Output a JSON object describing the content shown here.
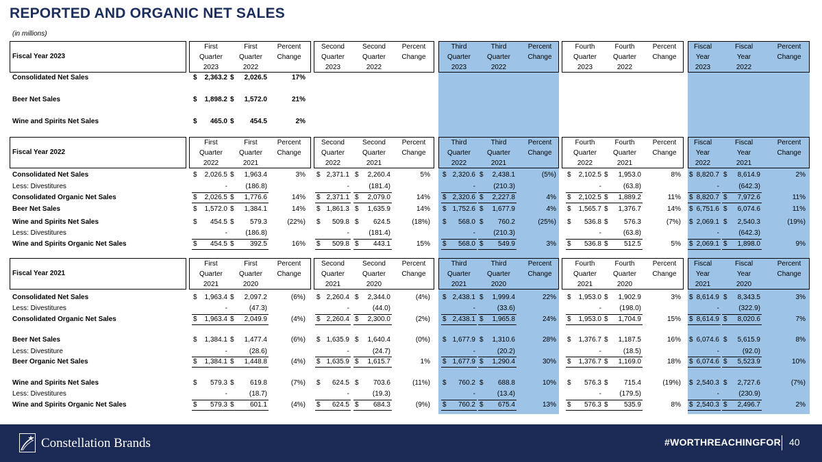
{
  "title": "REPORTED AND ORGANIC NET SALES",
  "units_note": "(in millions)",
  "sections": [
    {
      "label": "Fiscal Year 2023",
      "col_headers": [
        [
          "First",
          "Quarter",
          "2023"
        ],
        [
          "First",
          "Quarter",
          "2022"
        ],
        [
          "Percent",
          "Change",
          ""
        ],
        [
          "Second",
          "Quarter",
          "2023"
        ],
        [
          "Second",
          "Quarter",
          "2022"
        ],
        [
          "Percent",
          "Change",
          ""
        ],
        [
          "Third",
          "Quarter",
          "2023"
        ],
        [
          "Third",
          "Quarter",
          "2022"
        ],
        [
          "Percent",
          "Change",
          ""
        ],
        [
          "Fourth",
          "Quarter",
          "2023"
        ],
        [
          "Fourth",
          "Quarter",
          "2022"
        ],
        [
          "Percent",
          "Change",
          ""
        ],
        [
          "Fiscal",
          "Year",
          "2023"
        ],
        [
          "Fiscal",
          "Year",
          "2022"
        ],
        [
          "Percent",
          "Change",
          ""
        ]
      ],
      "rows": [
        {
          "label": "Consolidated Net Sales",
          "bold": true,
          "total": false,
          "dollar": true,
          "values": [
            "2,363.2",
            "2,026.5",
            "17%",
            "",
            "",
            "",
            "",
            "",
            "",
            "",
            "",
            "",
            "",
            "",
            ""
          ]
        },
        {
          "label": "Beer Net Sales",
          "bold": true,
          "total": false,
          "dollar": true,
          "values": [
            "1,898.2",
            "1,572.0",
            "21%",
            "",
            "",
            "",
            "",
            "",
            "",
            "",
            "",
            "",
            "",
            "",
            ""
          ]
        },
        {
          "label": "Wine and Spirits Net Sales",
          "bold": true,
          "total": false,
          "dollar": true,
          "values": [
            "465.0",
            "454.5",
            "2%",
            "",
            "",
            "",
            "",
            "",
            "",
            "",
            "",
            "",
            "",
            "",
            ""
          ]
        }
      ]
    },
    {
      "label": "Fiscal Year 2022",
      "col_headers": [
        [
          "First",
          "Quarter",
          "2022"
        ],
        [
          "First",
          "Quarter",
          "2021"
        ],
        [
          "Percent",
          "Change",
          ""
        ],
        [
          "Second",
          "Quarter",
          "2022"
        ],
        [
          "Second",
          "Quarter",
          "2021"
        ],
        [
          "Percent",
          "Change",
          ""
        ],
        [
          "Third",
          "Quarter",
          "2022"
        ],
        [
          "Third",
          "Quarter",
          "2021"
        ],
        [
          "Percent",
          "Change",
          ""
        ],
        [
          "Fourth",
          "Quarter",
          "2022"
        ],
        [
          "Fourth",
          "Quarter",
          "2021"
        ],
        [
          "Percent",
          "Change",
          ""
        ],
        [
          "Fiscal",
          "Year",
          "2022"
        ],
        [
          "Fiscal",
          "Year",
          "2021"
        ],
        [
          "Percent",
          "Change",
          ""
        ]
      ],
      "rows": [
        {
          "label": "Consolidated Net Sales",
          "bold": true,
          "total": false,
          "dollar": true,
          "values": [
            "2,026.5",
            "1,963.4",
            "3%",
            "2,371.1",
            "2,260.4",
            "5%",
            "2,320.6",
            "2,438.1",
            "(5%)",
            "2,102.5",
            "1,953.0",
            "8%",
            "8,820.7",
            "8,614.9",
            "2%"
          ]
        },
        {
          "label": "Less: Divestitures",
          "bold": false,
          "total": false,
          "dollar": false,
          "values": [
            "-",
            "(186.8)",
            "",
            "-",
            "(181.4)",
            "",
            "-",
            "(210.3)",
            "",
            "-",
            "(63.8)",
            "",
            "-",
            "(642.3)",
            ""
          ]
        },
        {
          "label": "Consolidated Organic Net Sales",
          "bold": true,
          "total": true,
          "dollar": true,
          "values": [
            "2,026.5",
            "1,776.6",
            "14%",
            "2,371.1",
            "2,079.0",
            "14%",
            "2,320.6",
            "2,227.8",
            "4%",
            "2,102.5",
            "1,889.2",
            "11%",
            "8,820.7",
            "7,972.6",
            "11%"
          ]
        },
        {
          "label": "Beer Net Sales",
          "bold": true,
          "total": false,
          "dollar": true,
          "values": [
            "1,572.0",
            "1,384.1",
            "14%",
            "1,861.3",
            "1,635.9",
            "14%",
            "1,752.6",
            "1,677.9",
            "4%",
            "1,565.7",
            "1,376.7",
            "14%",
            "6,751.6",
            "6,074.6",
            "11%"
          ]
        },
        {
          "label": "Wine and Spirits Net Sales",
          "bold": true,
          "total": false,
          "dollar": true,
          "values": [
            "454.5",
            "579.3",
            "(22%)",
            "509.8",
            "624.5",
            "(18%)",
            "568.0",
            "760.2",
            "(25%)",
            "536.8",
            "576.3",
            "(7%)",
            "2,069.1",
            "2,540.3",
            "(19%)"
          ]
        },
        {
          "label": "Less: Divestitures",
          "bold": false,
          "total": false,
          "dollar": false,
          "values": [
            "-",
            "(186.8)",
            "",
            "-",
            "(181.4)",
            "",
            "-",
            "(210.3)",
            "",
            "-",
            "(63.8)",
            "",
            "-",
            "(642.3)",
            ""
          ]
        },
        {
          "label": "Wine and Spirits Organic Net Sales",
          "bold": true,
          "total": true,
          "dollar": true,
          "values": [
            "454.5",
            "392.5",
            "16%",
            "509.8",
            "443.1",
            "15%",
            "568.0",
            "549.9",
            "3%",
            "536.8",
            "512.5",
            "5%",
            "2,069.1",
            "1,898.0",
            "9%"
          ]
        }
      ]
    },
    {
      "label": "Fiscal Year 2021",
      "col_headers": [
        [
          "First",
          "Quarter",
          "2021"
        ],
        [
          "First",
          "Quarter",
          "2020"
        ],
        [
          "Percent",
          "Change",
          ""
        ],
        [
          "Second",
          "Quarter",
          "2021"
        ],
        [
          "Second",
          "Quarter",
          "2020"
        ],
        [
          "Percent",
          "Change",
          ""
        ],
        [
          "Third",
          "Quarter",
          "2021"
        ],
        [
          "Third",
          "Quarter",
          "2020"
        ],
        [
          "Percent",
          "Change",
          ""
        ],
        [
          "Fourth",
          "Quarter",
          "2021"
        ],
        [
          "Fourth",
          "Quarter",
          "2020"
        ],
        [
          "Percent",
          "Change",
          ""
        ],
        [
          "Fiscal",
          "Year",
          "2021"
        ],
        [
          "Fiscal",
          "Year",
          "2020"
        ],
        [
          "Percent",
          "Change",
          ""
        ]
      ],
      "rows": [
        {
          "label": "Consolidated Net Sales",
          "bold": true,
          "total": false,
          "dollar": true,
          "values": [
            "1,963.4",
            "2,097.2",
            "(6%)",
            "2,260.4",
            "2,344.0",
            "(4%)",
            "2,438.1",
            "1,999.4",
            "22%",
            "1,953.0",
            "1,902.9",
            "3%",
            "8,614.9",
            "8,343.5",
            "3%"
          ]
        },
        {
          "label": "Less: Divestitures",
          "bold": false,
          "total": false,
          "dollar": false,
          "values": [
            "-",
            "(47.3)",
            "",
            "-",
            "(44.0)",
            "",
            "-",
            "(33.6)",
            "",
            "-",
            "(198.0)",
            "",
            "-",
            "(322.9)",
            ""
          ]
        },
        {
          "label": "Consolidated Organic Net Sales",
          "bold": true,
          "total": true,
          "dollar": true,
          "values": [
            "1,963.4",
            "2,049.9",
            "(4%)",
            "2,260.4",
            "2,300.0",
            "(2%)",
            "2,438.1",
            "1,965.8",
            "24%",
            "1,953.0",
            "1,704.9",
            "15%",
            "8,614.9",
            "8,020.6",
            "7%"
          ]
        },
        {
          "label": "Beer Net Sales",
          "bold": true,
          "total": false,
          "dollar": true,
          "values": [
            "1,384.1",
            "1,477.4",
            "(6%)",
            "1,635.9",
            "1,640.4",
            "(0%)",
            "1,677.9",
            "1,310.6",
            "28%",
            "1,376.7",
            "1,187.5",
            "16%",
            "6,074.6",
            "5,615.9",
            "8%"
          ]
        },
        {
          "label": "Less: Divestiture",
          "bold": false,
          "total": false,
          "dollar": false,
          "values": [
            "-",
            "(28.6)",
            "",
            "-",
            "(24.7)",
            "",
            "-",
            "(20.2)",
            "",
            "-",
            "(18.5)",
            "",
            "-",
            "(92.0)",
            ""
          ]
        },
        {
          "label": "Beer Organic Net Sales",
          "bold": true,
          "total": true,
          "dollar": true,
          "values": [
            "1,384.1",
            "1,448.8",
            "(4%)",
            "1,635.9",
            "1,615.7",
            "1%",
            "1,677.9",
            "1,290.4",
            "30%",
            "1,376.7",
            "1,169.0",
            "18%",
            "6,074.6",
            "5,523.9",
            "10%"
          ]
        },
        {
          "label": "Wine and Spirits Net Sales",
          "bold": true,
          "total": false,
          "dollar": true,
          "values": [
            "579.3",
            "619.8",
            "(7%)",
            "624.5",
            "703.6",
            "(11%)",
            "760.2",
            "688.8",
            "10%",
            "576.3",
            "715.4",
            "(19%)",
            "2,540.3",
            "2,727.6",
            "(7%)"
          ]
        },
        {
          "label": "Less: Divestitures",
          "bold": false,
          "total": false,
          "dollar": false,
          "values": [
            "-",
            "(18.7)",
            "",
            "-",
            "(19.3)",
            "",
            "-",
            "(13.4)",
            "",
            "-",
            "(179.5)",
            "",
            "-",
            "(230.9)",
            ""
          ]
        },
        {
          "label": "Wine and Spirits Organic Net Sales",
          "bold": true,
          "total": true,
          "dollar": true,
          "values": [
            "579.3",
            "601.1",
            "(4%)",
            "624.5",
            "684.3",
            "(9%)",
            "760.2",
            "675.4",
            "13%",
            "576.3",
            "535.9",
            "8%",
            "2,540.3",
            "2,496.7",
            "2%"
          ]
        }
      ]
    }
  ],
  "dollar_sign": "$",
  "footer": {
    "company_name": "Constellation Brands",
    "hashtag": "#WORTHREACHINGFOR",
    "page_number": "40",
    "logo_icon": "star-swoosh-icon"
  }
}
